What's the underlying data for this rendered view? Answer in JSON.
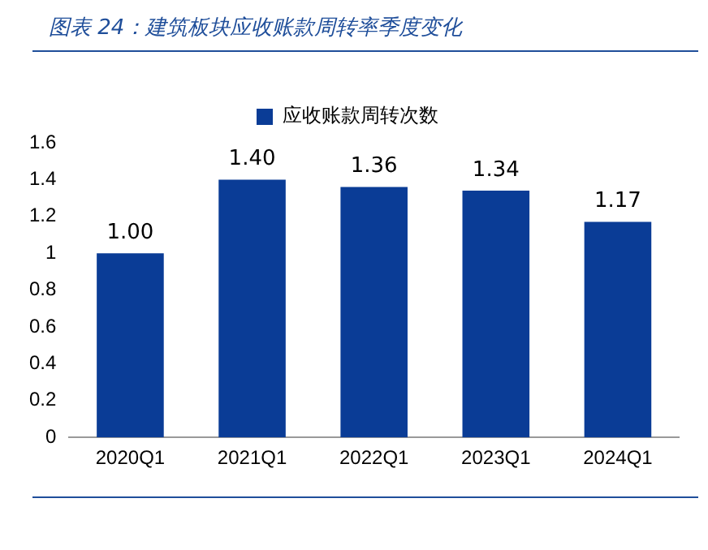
{
  "chart_data": {
    "type": "bar",
    "title": "图表 24：建筑板块应收账款周转率季度变化",
    "categories": [
      "2020Q1",
      "2021Q1",
      "2022Q1",
      "2023Q1",
      "2024Q1"
    ],
    "series": [
      {
        "name": "应收账款周转次数",
        "color": "#0a3c96",
        "values": [
          1.0,
          1.4,
          1.36,
          1.34,
          1.17
        ]
      }
    ],
    "value_labels": [
      "1.00",
      "1.40",
      "1.36",
      "1.34",
      "1.17"
    ],
    "ylim": [
      0,
      1.6
    ],
    "yticks": [
      0,
      0.2,
      0.4,
      0.6,
      0.8,
      1,
      1.2,
      1.4,
      1.6
    ],
    "grid": false,
    "legend": "top"
  }
}
